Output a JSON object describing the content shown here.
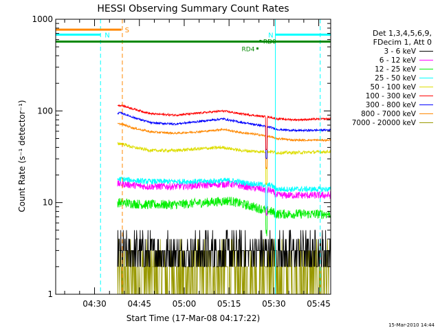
{
  "chart_data": {
    "type": "line",
    "title": "HESSI Observing Summary Count Rates",
    "xlabel": "Start Time (17-Mar-08 04:17:22)",
    "ylabel": "Count Rate (s⁻¹ detector⁻¹)",
    "y_scale": "log",
    "ylim": [
      1,
      1000
    ],
    "xlim_minutes_after_0417": [
      0,
      92
    ],
    "x_ticks": [
      {
        "label": "04:30",
        "min": 13
      },
      {
        "label": "04:45",
        "min": 28
      },
      {
        "label": "05:00",
        "min": 43
      },
      {
        "label": "05:15",
        "min": 58
      },
      {
        "label": "05:30",
        "min": 73
      },
      {
        "label": "05:45",
        "min": 88
      }
    ],
    "y_ticks": [
      {
        "label": "1",
        "value": 1
      },
      {
        "label": "10",
        "value": 10
      },
      {
        "label": "100",
        "value": 100
      },
      {
        "label": "1000",
        "value": 1000
      }
    ],
    "legend_header": [
      "Det 1,3,4,5,6,9,",
      "FDecim 1, Att 0"
    ],
    "legend_placement": "right",
    "series": [
      {
        "name": "3 - 6 keV",
        "color": "#000000",
        "key": [
          [
            22,
            3
          ],
          [
            40,
            3
          ],
          [
            55,
            3.4
          ],
          [
            66,
            3
          ],
          [
            76,
            3
          ],
          [
            92,
            3
          ]
        ]
      },
      {
        "name": "6 - 12 keV",
        "color": "#ff00ff",
        "key": [
          [
            22,
            16
          ],
          [
            30,
            15
          ],
          [
            40,
            15
          ],
          [
            50,
            15.5
          ],
          [
            58,
            16
          ],
          [
            66,
            14.5
          ],
          [
            72,
            13.5
          ],
          [
            74,
            12
          ],
          [
            80,
            12
          ],
          [
            92,
            12
          ]
        ]
      },
      {
        "name": "12 - 25 keV",
        "color": "#00ee00",
        "key": [
          [
            22,
            10
          ],
          [
            30,
            9.5
          ],
          [
            40,
            9.5
          ],
          [
            50,
            10
          ],
          [
            58,
            10.5
          ],
          [
            66,
            9
          ],
          [
            72,
            8
          ],
          [
            74,
            7.5
          ],
          [
            80,
            7.5
          ],
          [
            92,
            7.5
          ]
        ]
      },
      {
        "name": "25 - 50 keV",
        "color": "#00ffff",
        "key": [
          [
            22,
            18
          ],
          [
            30,
            17
          ],
          [
            40,
            17
          ],
          [
            50,
            17
          ],
          [
            58,
            17.5
          ],
          [
            66,
            16
          ],
          [
            72,
            15.5
          ],
          [
            74,
            14
          ],
          [
            80,
            14
          ],
          [
            92,
            14
          ]
        ]
      },
      {
        "name": "50 - 100 keV",
        "color": "#dddd00",
        "key": [
          [
            22,
            44
          ],
          [
            26,
            40
          ],
          [
            32,
            37
          ],
          [
            40,
            37
          ],
          [
            50,
            39
          ],
          [
            56,
            40
          ],
          [
            62,
            37
          ],
          [
            68,
            36
          ],
          [
            72,
            36
          ],
          [
            74,
            35
          ],
          [
            80,
            35
          ],
          [
            92,
            36
          ]
        ]
      },
      {
        "name": "100 - 300 keV",
        "color": "#ff0000",
        "key": [
          [
            22,
            115
          ],
          [
            26,
            105
          ],
          [
            32,
            93
          ],
          [
            40,
            90
          ],
          [
            50,
            96
          ],
          [
            56,
            100
          ],
          [
            62,
            93
          ],
          [
            68,
            88
          ],
          [
            72,
            85
          ],
          [
            74,
            82
          ],
          [
            80,
            80
          ],
          [
            92,
            82
          ]
        ]
      },
      {
        "name": "300 - 800 keV",
        "color": "#0000ff",
        "key": [
          [
            22,
            95
          ],
          [
            26,
            85
          ],
          [
            32,
            74
          ],
          [
            40,
            72
          ],
          [
            50,
            78
          ],
          [
            56,
            82
          ],
          [
            62,
            75
          ],
          [
            68,
            70
          ],
          [
            72,
            66
          ],
          [
            74,
            63
          ],
          [
            80,
            61
          ],
          [
            92,
            62
          ]
        ]
      },
      {
        "name": "800 - 7000 keV",
        "color": "#ff8800",
        "key": [
          [
            22,
            72
          ],
          [
            26,
            65
          ],
          [
            32,
            59
          ],
          [
            40,
            57
          ],
          [
            50,
            60
          ],
          [
            56,
            63
          ],
          [
            62,
            58
          ],
          [
            68,
            55
          ],
          [
            72,
            52
          ],
          [
            74,
            50
          ],
          [
            80,
            48
          ],
          [
            92,
            48
          ]
        ]
      },
      {
        "name": "7000 - 20000 keV",
        "color": "#999900",
        "key": [
          [
            22,
            2
          ],
          [
            40,
            2
          ],
          [
            55,
            2.2
          ],
          [
            66,
            2
          ],
          [
            76,
            2
          ],
          [
            92,
            2
          ]
        ]
      }
    ],
    "annotations": [
      {
        "label": "S",
        "color": "#ff8800",
        "y": 770,
        "from": 0,
        "to": 22
      },
      {
        "label": "N",
        "color": "#00ffff",
        "y": 680,
        "from": 0,
        "to": 15
      },
      {
        "label": "N",
        "color": "#00ffff",
        "y": 680,
        "from": 73.5,
        "to": 92
      },
      {
        "label": "RD4",
        "color": "#008800",
        "y": 480,
        "at": 67.5
      },
      {
        "label": "RD0",
        "color": "#008800",
        "y": 580,
        "at": 68.5
      }
    ],
    "vertical_markers": [
      {
        "min": 15,
        "color": "#00ffff",
        "style": "dashed"
      },
      {
        "min": 22.3,
        "color": "#ff8800",
        "style": "dashed"
      },
      {
        "min": 73.5,
        "color": "#00ffff",
        "style": "solid"
      },
      {
        "min": 88.5,
        "color": "#00ffff",
        "style": "dashed"
      }
    ],
    "green_flag_line": {
      "y": 570,
      "color": "#008800"
    }
  },
  "footer_timestamp": "15-Mar-2010 14:44"
}
